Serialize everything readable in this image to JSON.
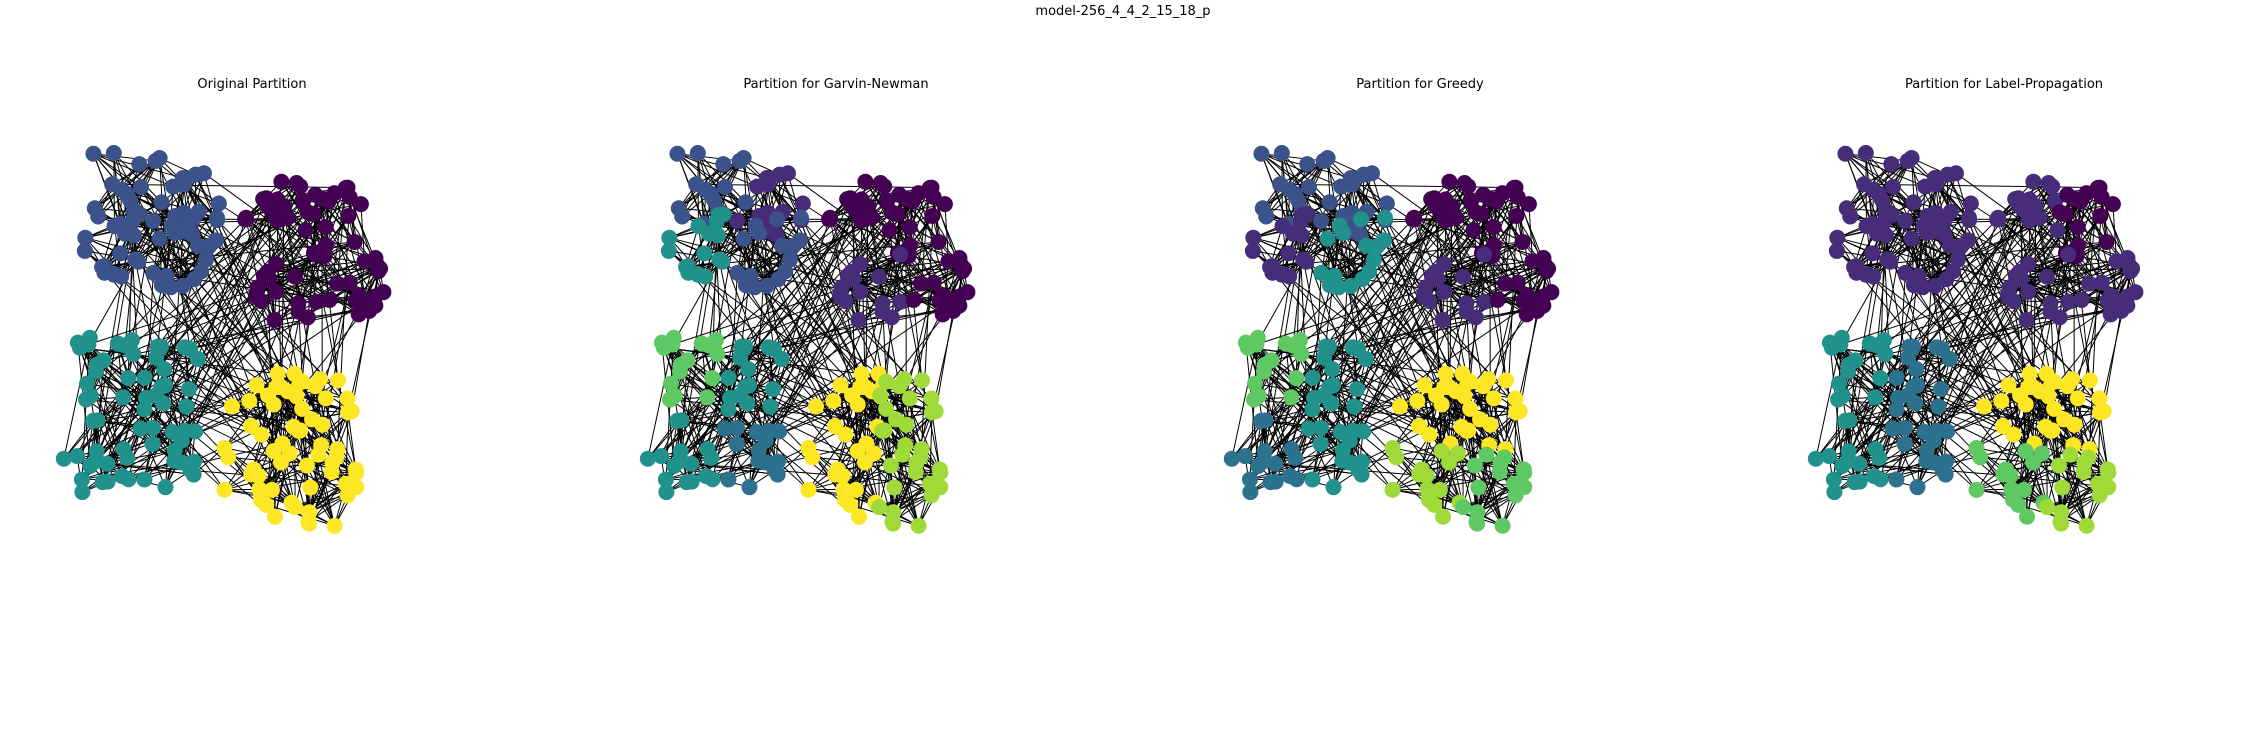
{
  "figure": {
    "title": "model-256_4_4_2_15_18_p"
  },
  "colors": {
    "palette": [
      "#440154",
      "#3b528b",
      "#21918c",
      "#5ec962",
      "#fde725",
      "#2c728e",
      "#472c7a",
      "#a0da39"
    ],
    "edge": "#000000",
    "background": "#ffffff"
  },
  "chart_data": {
    "type": "network",
    "graph_name": "model-256_4_4_2_15_18_p",
    "node_count": 256,
    "groups": 16,
    "colormap": "viridis",
    "panels": [
      {
        "title": "Original Partition",
        "partition": "original"
      },
      {
        "title": "Partition for Garvin-Newman",
        "partition": "garvin-newman"
      },
      {
        "title": "Partition for Greedy",
        "partition": "greedy"
      },
      {
        "title": "Partition for Label-Propagation",
        "partition": "label-propagation"
      }
    ]
  }
}
